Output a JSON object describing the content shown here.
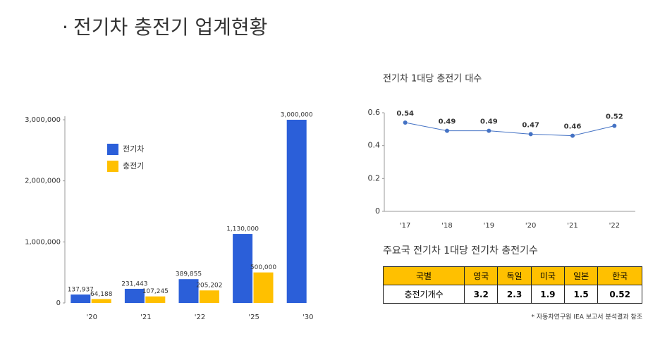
{
  "title": "전기차 충전기 업계현황",
  "chart_data": [
    {
      "type": "bar",
      "categories": [
        "'20",
        "'21",
        "'22",
        "'25",
        "'30"
      ],
      "series": [
        {
          "name": "전기차",
          "color": "#2b5fd9",
          "values": [
            137937,
            231443,
            389855,
            1130000,
            3000000
          ],
          "value_labels": [
            "137,937",
            "231,443",
            "389,855",
            "1,130,000",
            "3,000,000"
          ]
        },
        {
          "name": "충전기",
          "color": "#ffc000",
          "values": [
            64188,
            107245,
            205202,
            500000,
            null
          ],
          "value_labels": [
            "64,188",
            "107,245",
            "205,202",
            "500,000",
            null
          ]
        }
      ],
      "ylim": [
        0,
        3000000
      ],
      "yticks": [
        0,
        {
          "value": 1000000,
          "label": "1,000,000"
        },
        {
          "value": 2000000,
          "label": "2,000,000"
        },
        {
          "value": 3000000,
          "label": "3,000,000"
        }
      ],
      "legend": "upper left"
    },
    {
      "type": "line",
      "title": "전기차 1대당 충전기 대수",
      "categories": [
        "'17",
        "'18",
        "'19",
        "'20",
        "'21",
        "'22"
      ],
      "series": [
        {
          "name": null,
          "color": "#4472c4",
          "values": [
            0.54,
            0.49,
            0.49,
            0.47,
            0.46,
            0.52
          ]
        }
      ],
      "ylim": [
        0,
        0.6
      ],
      "yticks": [
        0,
        0.2,
        0.4,
        0.6
      ]
    }
  ],
  "table": {
    "title": "주요국 전기차 1대당 전기차 충전기수",
    "header": [
      "국별",
      "영국",
      "독일",
      "미국",
      "일본",
      "한국"
    ],
    "rows": [
      [
        "충전기개수",
        "3.2",
        "2.3",
        "1.9",
        "1.5",
        "0.52"
      ]
    ]
  },
  "note": "* 자동차연구원 IEA 보고서 분석결과 참조"
}
